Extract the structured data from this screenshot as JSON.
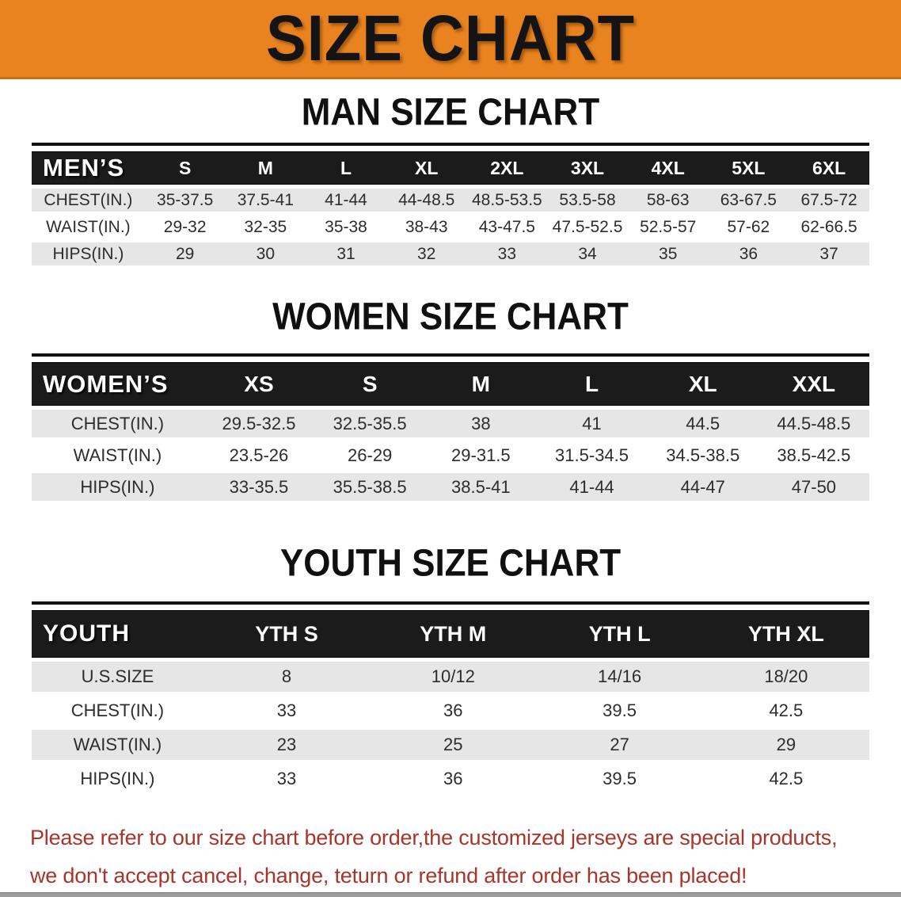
{
  "banner": {
    "title": "SIZE CHART",
    "bg": "#E8831F"
  },
  "sections": [
    {
      "id": "men",
      "heading": "MAN SIZE CHART",
      "table": {
        "label": "MEN’S",
        "columns": [
          "S",
          "M",
          "L",
          "XL",
          "2XL",
          "3XL",
          "4XL",
          "5XL",
          "6XL"
        ],
        "rows": [
          {
            "label": "CHEST(IN.)",
            "values": [
              "35-37.5",
              "37.5-41",
              "41-44",
              "44-48.5",
              "48.5-53.5",
              "53.5-58",
              "58-63",
              "63-67.5",
              "67.5-72"
            ]
          },
          {
            "label": "WAIST(IN.)",
            "values": [
              "29-32",
              "32-35",
              "35-38",
              "38-43",
              "43-47.5",
              "47.5-52.5",
              "52.5-57",
              "57-62",
              "62-66.5"
            ]
          },
          {
            "label": "HIPS(IN.)",
            "values": [
              "29",
              "30",
              "31",
              "32",
              "33",
              "34",
              "35",
              "36",
              "37"
            ]
          }
        ]
      }
    },
    {
      "id": "women",
      "heading": "WOMEN SIZE CHART",
      "table": {
        "label": "WOMEN’S",
        "columns": [
          "XS",
          "S",
          "M",
          "L",
          "XL",
          "XXL"
        ],
        "rows": [
          {
            "label": "CHEST(IN.)",
            "values": [
              "29.5-32.5",
              "32.5-35.5",
              "38",
              "41",
              "44.5",
              "44.5-48.5"
            ]
          },
          {
            "label": "WAIST(IN.)",
            "values": [
              "23.5-26",
              "26-29",
              "29-31.5",
              "31.5-34.5",
              "34.5-38.5",
              "38.5-42.5"
            ]
          },
          {
            "label": "HIPS(IN.)",
            "values": [
              "33-35.5",
              "35.5-38.5",
              "38.5-41",
              "41-44",
              "44-47",
              "47-50"
            ]
          }
        ]
      }
    },
    {
      "id": "youth",
      "heading": "YOUTH SIZE CHART",
      "table": {
        "label": "YOUTH",
        "columns": [
          "YTH S",
          "YTH M",
          "YTH L",
          "YTH XL"
        ],
        "rows": [
          {
            "label": "U.S.SIZE",
            "values": [
              "8",
              "10/12",
              "14/16",
              "18/20"
            ]
          },
          {
            "label": "CHEST(IN.)",
            "values": [
              "33",
              "36",
              "39.5",
              "42.5"
            ]
          },
          {
            "label": "WAIST(IN.)",
            "values": [
              "23",
              "25",
              "27",
              "29"
            ]
          },
          {
            "label": "HIPS(IN.)",
            "values": [
              "33",
              "36",
              "39.5",
              "42.5"
            ]
          }
        ]
      }
    }
  ],
  "disclaimer": {
    "line1": "Please refer to our size chart before order,the customized jerseys are special products,",
    "line2": "we don't accept cancel, change, teturn or refund after order has been placed!",
    "color": "#A8342A"
  },
  "colors": {
    "header_bar": "#1b1b1b",
    "row_stripe": "#e6e6e6",
    "banner_text": "#141414"
  }
}
